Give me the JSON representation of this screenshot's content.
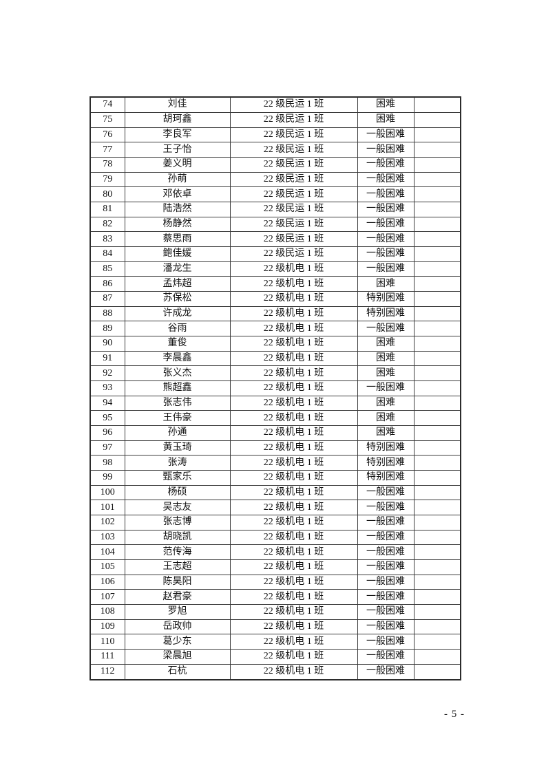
{
  "page": {
    "footer_page_number": "- 5 -"
  },
  "table": {
    "rows": [
      {
        "no": "74",
        "name": "刘佳",
        "class_name": "22 级民运 1 班",
        "level": "困难"
      },
      {
        "no": "75",
        "name": "胡珂鑫",
        "class_name": "22 级民运 1 班",
        "level": "困难"
      },
      {
        "no": "76",
        "name": "李良军",
        "class_name": "22 级民运 1 班",
        "level": "一般困难"
      },
      {
        "no": "77",
        "name": "王子怡",
        "class_name": "22 级民运 1 班",
        "level": "一般困难"
      },
      {
        "no": "78",
        "name": "姜义明",
        "class_name": "22 级民运 1 班",
        "level": "一般困难"
      },
      {
        "no": "79",
        "name": "孙萌",
        "class_name": "22 级民运 1 班",
        "level": "一般困难"
      },
      {
        "no": "80",
        "name": "邓依卓",
        "class_name": "22 级民运 1 班",
        "level": "一般困难"
      },
      {
        "no": "81",
        "name": "陆浩然",
        "class_name": "22 级民运 1 班",
        "level": "一般困难"
      },
      {
        "no": "82",
        "name": "杨静然",
        "class_name": "22 级民运 1 班",
        "level": "一般困难"
      },
      {
        "no": "83",
        "name": "蔡思雨",
        "class_name": "22 级民运 1 班",
        "level": "一般困难"
      },
      {
        "no": "84",
        "name": "鲍佳媛",
        "class_name": "22 级民运 1 班",
        "level": "一般困难"
      },
      {
        "no": "85",
        "name": "潘龙生",
        "class_name": "22 级机电 1 班",
        "level": "一般困难"
      },
      {
        "no": "86",
        "name": "孟炜超",
        "class_name": "22 级机电 1 班",
        "level": "困难"
      },
      {
        "no": "87",
        "name": "苏保松",
        "class_name": "22 级机电 1 班",
        "level": "特别困难"
      },
      {
        "no": "88",
        "name": "许成龙",
        "class_name": "22 级机电 1 班",
        "level": "特别困难"
      },
      {
        "no": "89",
        "name": "谷雨",
        "class_name": "22 级机电 1 班",
        "level": "一般困难"
      },
      {
        "no": "90",
        "name": "董俊",
        "class_name": "22 级机电 1 班",
        "level": "困难"
      },
      {
        "no": "91",
        "name": "李晨鑫",
        "class_name": "22 级机电 1 班",
        "level": "困难"
      },
      {
        "no": "92",
        "name": "张义杰",
        "class_name": "22 级机电 1 班",
        "level": "困难"
      },
      {
        "no": "93",
        "name": "熊超鑫",
        "class_name": "22 级机电 1 班",
        "level": "一般困难"
      },
      {
        "no": "94",
        "name": "张志伟",
        "class_name": "22 级机电 1 班",
        "level": "困难"
      },
      {
        "no": "95",
        "name": "王伟豪",
        "class_name": "22 级机电 1 班",
        "level": "困难"
      },
      {
        "no": "96",
        "name": "孙通",
        "class_name": "22 级机电 1 班",
        "level": "困难"
      },
      {
        "no": "97",
        "name": "黄玉琦",
        "class_name": "22 级机电 1 班",
        "level": "特别困难"
      },
      {
        "no": "98",
        "name": "张涛",
        "class_name": "22 级机电 1 班",
        "level": "特别困难"
      },
      {
        "no": "99",
        "name": "甄家乐",
        "class_name": "22 级机电 1 班",
        "level": "特别困难"
      },
      {
        "no": "100",
        "name": "杨硕",
        "class_name": "22 级机电 1 班",
        "level": "一般困难"
      },
      {
        "no": "101",
        "name": "吴志友",
        "class_name": "22 级机电 1 班",
        "level": "一般困难"
      },
      {
        "no": "102",
        "name": "张志博",
        "class_name": "22 级机电 1 班",
        "level": "一般困难"
      },
      {
        "no": "103",
        "name": "胡晓凯",
        "class_name": "22 级机电 1 班",
        "level": "一般困难"
      },
      {
        "no": "104",
        "name": "范传海",
        "class_name": "22 级机电 1 班",
        "level": "一般困难"
      },
      {
        "no": "105",
        "name": "王志超",
        "class_name": "22 级机电 1 班",
        "level": "一般困难"
      },
      {
        "no": "106",
        "name": "陈昊阳",
        "class_name": "22 级机电 1 班",
        "level": "一般困难"
      },
      {
        "no": "107",
        "name": "赵君豪",
        "class_name": "22 级机电 1 班",
        "level": "一般困难"
      },
      {
        "no": "108",
        "name": "罗旭",
        "class_name": "22 级机电 1 班",
        "level": "一般困难"
      },
      {
        "no": "109",
        "name": "岳政帅",
        "class_name": "22 级机电 1 班",
        "level": "一般困难"
      },
      {
        "no": "110",
        "name": "葛少东",
        "class_name": "22 级机电 1 班",
        "level": "一般困难"
      },
      {
        "no": "111",
        "name": "梁晨旭",
        "class_name": "22 级机电 1 班",
        "level": "一般困难"
      },
      {
        "no": "112",
        "name": "石杭",
        "class_name": "22 级机电 1 班",
        "level": "一般困难"
      }
    ]
  }
}
